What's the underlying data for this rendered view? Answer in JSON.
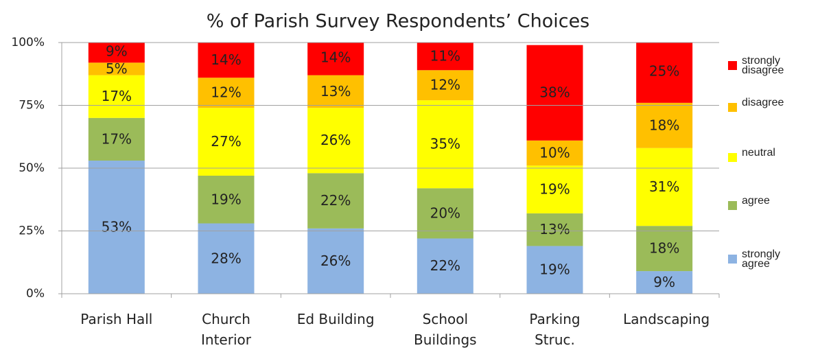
{
  "chart_data": {
    "type": "stacked_bar",
    "title": "% of Parish Survey Respondents’ Choices",
    "categories": [
      "Parish Hall",
      "Church Interior",
      "Ed Building",
      "School Buildings",
      "Parking Struc.",
      "Landscaping"
    ],
    "series": [
      {
        "name": "strongly agree",
        "color": "#8db3e2",
        "values": [
          53,
          28,
          26,
          22,
          19,
          9
        ],
        "value_labels": [
          "53%",
          "28%",
          "26%",
          "22%",
          "19%",
          "9%"
        ]
      },
      {
        "name": "agree",
        "color": "#9bbb59",
        "values": [
          17,
          19,
          22,
          20,
          13,
          18
        ],
        "value_labels": [
          "17%",
          "19%",
          "22%",
          "20%",
          "13%",
          "18%"
        ]
      },
      {
        "name": "neutral",
        "color": "#ffff00",
        "values": [
          17,
          27,
          26,
          35,
          19,
          31
        ],
        "value_labels": [
          "17%",
          "27%",
          "26%",
          "35%",
          "19%",
          "31%"
        ]
      },
      {
        "name": "disagree",
        "color": "#ffc000",
        "values": [
          5,
          12,
          13,
          12,
          10,
          18
        ],
        "value_labels": [
          "5%",
          "12%",
          "13%",
          "12%",
          "10%",
          "18%"
        ]
      },
      {
        "name": "strongly disagree",
        "color": "#ff0000",
        "values": [
          9,
          14,
          14,
          11,
          38,
          25
        ],
        "value_labels": [
          "9%",
          "14%",
          "14%",
          "11%",
          "38%",
          "25%"
        ]
      }
    ],
    "ylim": [
      0,
      100
    ],
    "yticks": [
      {
        "value": 0,
        "label": "0%"
      },
      {
        "value": 25,
        "label": "25%"
      },
      {
        "value": 50,
        "label": "50%"
      },
      {
        "value": 75,
        "label": "75%"
      },
      {
        "value": 100,
        "label": "100%"
      }
    ],
    "grid": true,
    "legend": "right"
  }
}
